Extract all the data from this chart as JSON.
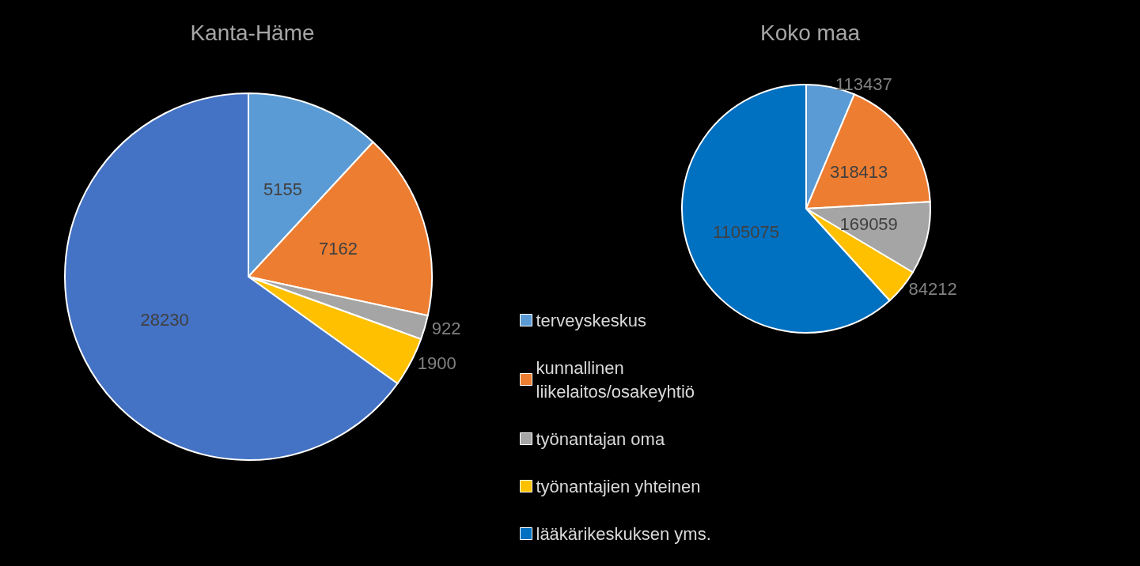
{
  "chart_data": [
    {
      "type": "pie",
      "title": "Kanta-Häme",
      "categories": [
        null,
        null,
        null,
        null,
        null
      ],
      "values": [
        5155,
        7162,
        922,
        1900,
        28230
      ],
      "colors": [
        "#5b9bd5",
        "#ed7d31",
        "#a5a5a5",
        "#ffc000",
        "#4472c4"
      ],
      "data_labels": true,
      "legend": false
    },
    {
      "type": "pie",
      "title": "Koko maa",
      "categories": [
        "terveyskeskus",
        "kunnallinen liikelaitos/osakeyhtiö",
        "työnantajan oma",
        "työnantajien yhteinen",
        "lääkärikeskuksen yms."
      ],
      "values": [
        113437,
        318413,
        169059,
        84212,
        1105075
      ],
      "colors": [
        "#5b9bd5",
        "#ed7d31",
        "#a5a5a5",
        "#ffc000",
        "#0070c0"
      ],
      "data_labels": true,
      "legend": "bottom left"
    }
  ]
}
